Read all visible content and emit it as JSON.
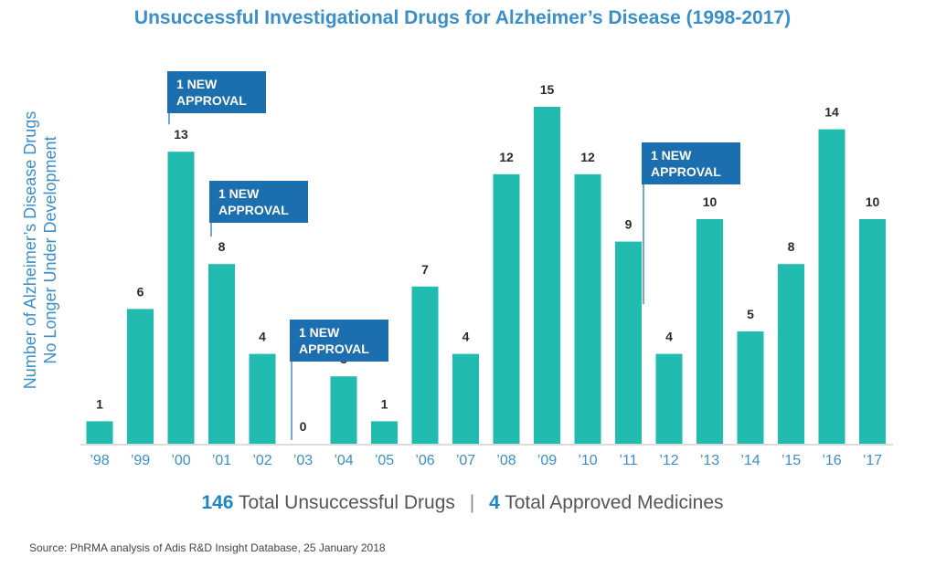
{
  "chart_data": {
    "type": "bar",
    "title": "Unsuccessful Investigational Drugs for Alzheimer’s Disease (1998-2017)",
    "ylabel_lines": [
      "Number of Alzheimer’s Disease Drugs",
      "No Longer Under Development"
    ],
    "xlabel": "",
    "categories": [
      "’98",
      "’99",
      "’00",
      "’01",
      "’02",
      "’03",
      "’04",
      "’05",
      "’06",
      "’07",
      "’08",
      "’09",
      "’10",
      "’11",
      "’12",
      "’13",
      "’14",
      "’15",
      "’16",
      "’17"
    ],
    "values": [
      1,
      6,
      13,
      8,
      4,
      0,
      3,
      1,
      7,
      4,
      12,
      15,
      12,
      9,
      4,
      10,
      5,
      8,
      14,
      10
    ],
    "ylim": [
      0,
      15
    ],
    "grid": false,
    "bar_color": "#22bbb0",
    "annotations": [
      {
        "category": "’00",
        "text": "1 NEW APPROVAL"
      },
      {
        "category": "’01",
        "text": "1 NEW APPROVAL"
      },
      {
        "category": "’03",
        "text": "1 NEW APPROVAL"
      },
      {
        "category": "’14",
        "text": "1 NEW APPROVAL"
      }
    ],
    "annotation_color": "#1b6fae"
  },
  "summary": {
    "unsuccessful_count": "146",
    "unsuccessful_label": "Total Unsuccessful Drugs",
    "separator": "|",
    "approved_count": "4",
    "approved_label": "Total Approved Medicines"
  },
  "source": "Source: PhRMA analysis of Adis R&D Insight Database, 25 January 2018"
}
